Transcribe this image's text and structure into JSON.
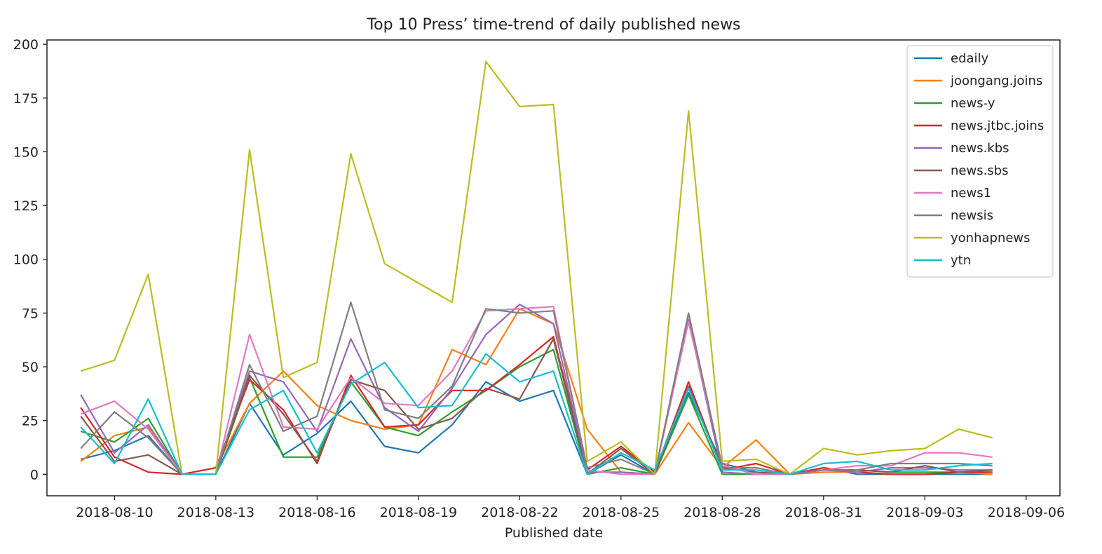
{
  "chart_data": {
    "type": "line",
    "title": "Top 10 Press’ time-trend of daily published news",
    "xlabel": "Published date",
    "ylabel": "",
    "ylim": [
      -10,
      202
    ],
    "grid": false,
    "legend_position": "top-right",
    "x": [
      "2018-08-09",
      "2018-08-10",
      "2018-08-11",
      "2018-08-12",
      "2018-08-13",
      "2018-08-14",
      "2018-08-15",
      "2018-08-16",
      "2018-08-17",
      "2018-08-18",
      "2018-08-19",
      "2018-08-20",
      "2018-08-21",
      "2018-08-22",
      "2018-08-23",
      "2018-08-24",
      "2018-08-25",
      "2018-08-26",
      "2018-08-27",
      "2018-08-28",
      "2018-08-29",
      "2018-08-30",
      "2018-08-31",
      "2018-09-01",
      "2018-09-02",
      "2018-09-03",
      "2018-09-04",
      "2018-09-05"
    ],
    "x_ticks": [
      "2018-08-10",
      "2018-08-13",
      "2018-08-16",
      "2018-08-19",
      "2018-08-22",
      "2018-08-25",
      "2018-08-28",
      "2018-08-31",
      "2018-09-03",
      "2018-09-06"
    ],
    "x_range": [
      "2018-08-08",
      "2018-09-07"
    ],
    "y_ticks": [
      0,
      25,
      50,
      75,
      100,
      125,
      150,
      175,
      200
    ],
    "series": [
      {
        "name": "edaily",
        "color": "#1f77b4",
        "values": [
          7,
          11,
          18,
          0,
          0,
          33,
          9,
          19,
          34,
          13,
          10,
          23,
          43,
          34,
          39,
          0,
          9,
          0,
          38,
          5,
          1,
          0,
          3,
          0,
          0,
          0,
          0,
          0
        ]
      },
      {
        "name": "joongang.joins",
        "color": "#ff7f0e",
        "values": [
          6,
          18,
          22,
          0,
          3,
          33,
          48,
          32,
          25,
          21,
          23,
          58,
          51,
          77,
          70,
          21,
          1,
          0,
          24,
          3,
          16,
          0,
          1,
          1,
          0,
          0,
          1,
          0
        ]
      },
      {
        "name": "news-y",
        "color": "#2ca02c",
        "values": [
          20,
          15,
          26,
          0,
          0,
          45,
          8,
          8,
          43,
          22,
          18,
          29,
          39,
          50,
          58,
          0,
          3,
          0,
          37,
          0,
          0,
          0,
          2,
          2,
          1,
          1,
          1,
          1
        ]
      },
      {
        "name": "news.jtbc.joins",
        "color": "#d62728",
        "values": [
          31,
          8,
          1,
          0,
          3,
          44,
          30,
          5,
          46,
          22,
          23,
          39,
          39,
          51,
          64,
          2,
          13,
          1,
          43,
          2,
          5,
          0,
          3,
          1,
          0,
          0,
          1,
          1
        ]
      },
      {
        "name": "news.kbs",
        "color": "#9467bd",
        "values": [
          37,
          10,
          23,
          0,
          0,
          48,
          43,
          20,
          63,
          31,
          20,
          40,
          65,
          79,
          70,
          1,
          1,
          0,
          72,
          1,
          0,
          0,
          2,
          1,
          3,
          3,
          2,
          2
        ]
      },
      {
        "name": "news.sbs",
        "color": "#8c564b",
        "values": [
          27,
          6,
          9,
          0,
          0,
          46,
          28,
          6,
          44,
          39,
          21,
          26,
          40,
          35,
          63,
          0,
          12,
          0,
          41,
          3,
          1,
          0,
          2,
          2,
          1,
          4,
          1,
          2
        ]
      },
      {
        "name": "news1",
        "color": "#e377c2",
        "values": [
          28,
          34,
          21,
          0,
          0,
          65,
          22,
          21,
          45,
          33,
          32,
          48,
          76,
          77,
          78,
          2,
          0,
          0,
          71,
          4,
          0,
          0,
          2,
          4,
          4,
          10,
          10,
          8
        ]
      },
      {
        "name": "newsis",
        "color": "#7f7f7f",
        "values": [
          12,
          29,
          17,
          0,
          0,
          51,
          20,
          27,
          80,
          30,
          26,
          41,
          77,
          75,
          76,
          3,
          7,
          0,
          75,
          3,
          3,
          0,
          2,
          2,
          5,
          5,
          5,
          4
        ]
      },
      {
        "name": "yonhapnews",
        "color": "#bcbd22",
        "values": [
          48,
          53,
          93,
          0,
          0,
          151,
          45,
          52,
          149,
          98,
          89,
          80,
          192,
          171,
          172,
          6,
          15,
          0,
          169,
          6,
          7,
          0,
          12,
          9,
          11,
          12,
          21,
          17
        ]
      },
      {
        "name": "ytn",
        "color": "#17becf",
        "values": [
          22,
          5,
          35,
          0,
          0,
          30,
          39,
          10,
          42,
          52,
          31,
          32,
          56,
          43,
          48,
          0,
          10,
          2,
          40,
          2,
          2,
          0,
          5,
          6,
          2,
          2,
          4,
          5
        ]
      }
    ]
  }
}
